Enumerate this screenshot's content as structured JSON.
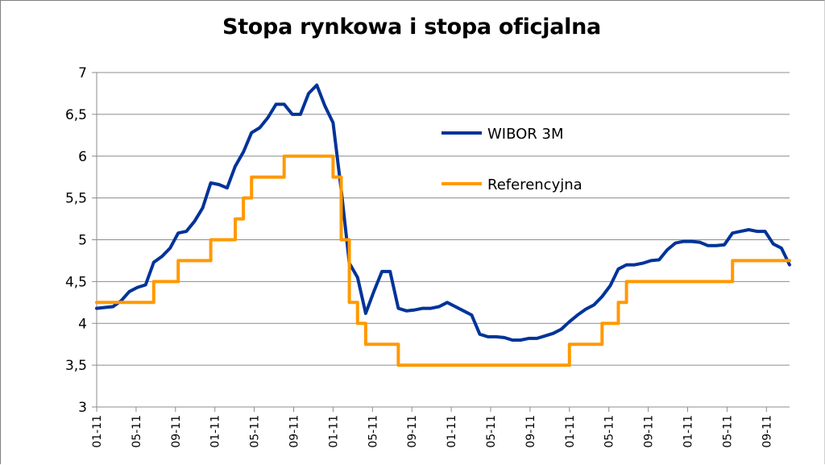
{
  "chart_data": {
    "type": "line",
    "title": "Stopa rynkowa i stopa oficjalna",
    "xlabel": "",
    "ylabel": "",
    "ylim": [
      3,
      7
    ],
    "y_ticks": [
      "3",
      "3,5",
      "4",
      "4,5",
      "5",
      "5,5",
      "6",
      "6,5",
      "7"
    ],
    "y_tick_values": [
      3,
      3.5,
      4,
      4.5,
      5,
      5.5,
      6,
      6.5,
      7
    ],
    "x_ticks": [
      "01-11",
      "05-11",
      "09-11",
      "01-11",
      "05-11",
      "09-11",
      "01-11",
      "05-11",
      "09-11",
      "01-11",
      "05-11",
      "09-11",
      "01-11",
      "05-11",
      "09-11",
      "01-11",
      "05-11",
      "09-11"
    ],
    "grid": "horizontal",
    "legend_position": "upper-right-inside",
    "series": [
      {
        "name": "WIBOR 3M",
        "color": "#003399",
        "values": [
          4.18,
          4.19,
          4.2,
          4.27,
          4.38,
          4.43,
          4.46,
          4.73,
          4.8,
          4.9,
          5.08,
          5.1,
          5.22,
          5.38,
          5.68,
          5.66,
          5.62,
          5.88,
          6.05,
          6.28,
          6.34,
          6.46,
          6.62,
          6.62,
          6.5,
          6.5,
          6.75,
          6.85,
          6.6,
          6.4,
          5.6,
          4.72,
          4.55,
          4.12,
          4.38,
          4.62,
          4.62,
          4.18,
          4.15,
          4.16,
          4.18,
          4.18,
          4.2,
          4.25,
          4.2,
          4.15,
          4.1,
          3.87,
          3.84,
          3.84,
          3.83,
          3.8,
          3.8,
          3.82,
          3.82,
          3.85,
          3.88,
          3.93,
          4.02,
          4.1,
          4.17,
          4.22,
          4.32,
          4.45,
          4.65,
          4.7,
          4.7,
          4.72,
          4.75,
          4.76,
          4.88,
          4.96,
          4.98,
          4.98,
          4.97,
          4.93,
          4.93,
          4.94,
          5.08,
          5.1,
          5.12,
          5.1,
          5.1,
          4.95,
          4.9,
          4.7
        ]
      },
      {
        "name": "Referencyjna",
        "color": "#FF9900",
        "values": [
          4.25,
          4.25,
          4.25,
          4.25,
          4.25,
          4.25,
          4.25,
          4.5,
          4.5,
          4.5,
          4.75,
          4.75,
          4.75,
          4.75,
          5.0,
          5.0,
          5.0,
          5.25,
          5.5,
          5.75,
          5.75,
          5.75,
          5.75,
          6.0,
          6.0,
          6.0,
          6.0,
          6.0,
          6.0,
          5.75,
          5.0,
          4.25,
          4.0,
          3.75,
          3.75,
          3.75,
          3.75,
          3.5,
          3.5,
          3.5,
          3.5,
          3.5,
          3.5,
          3.5,
          3.5,
          3.5,
          3.5,
          3.5,
          3.5,
          3.5,
          3.5,
          3.5,
          3.5,
          3.5,
          3.5,
          3.5,
          3.5,
          3.5,
          3.75,
          3.75,
          3.75,
          3.75,
          4.0,
          4.0,
          4.25,
          4.5,
          4.5,
          4.5,
          4.5,
          4.5,
          4.5,
          4.5,
          4.5,
          4.5,
          4.5,
          4.5,
          4.5,
          4.5,
          4.75,
          4.75,
          4.75,
          4.75,
          4.75,
          4.75,
          4.75,
          4.75
        ]
      }
    ]
  }
}
